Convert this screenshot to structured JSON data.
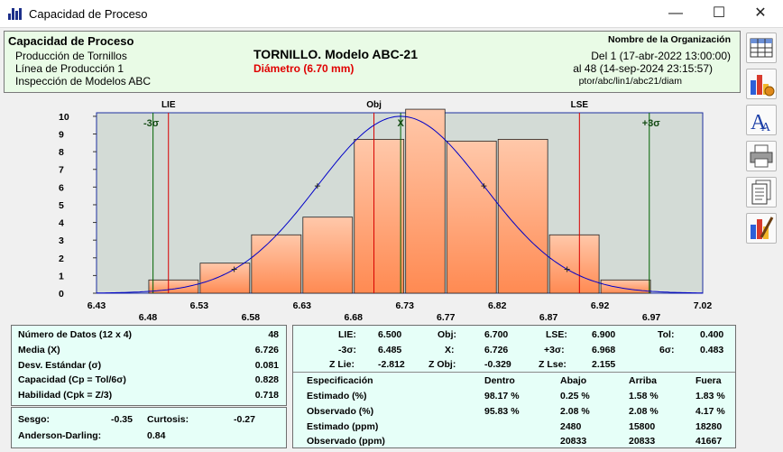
{
  "window": {
    "title": "Capacidad de Proceso"
  },
  "header": {
    "heading": "Capacidad de Proceso",
    "line1": "Producción de Tornillos",
    "line2": "Línea de Producción 1",
    "line3": "Inspección de Modelos ABC",
    "product": "TORNILLO. Modelo ABC-21",
    "characteristic": "Diámetro (6.70 mm)",
    "org": "Nombre de la Organización",
    "from": "Del 1 (17-abr-2022  13:00:00)",
    "to": "al 48 (14-sep-2024  23:15:57)",
    "path": "ptor/abc/lin1/abc21/diam"
  },
  "chart_data": {
    "type": "bar",
    "bin_edges": [
      6.43,
      6.48,
      6.53,
      6.58,
      6.63,
      6.68,
      6.73,
      6.77,
      6.82,
      6.87,
      6.92,
      6.97,
      7.02
    ],
    "tick_labels_top": [
      "6.43",
      "6.53",
      "6.63",
      "6.73",
      "6.82",
      "6.92",
      "7.02"
    ],
    "tick_labels_bottom": [
      "6.48",
      "6.58",
      "6.68",
      "6.77",
      "6.87",
      "6.97"
    ],
    "values": [
      0,
      0.75,
      1.7,
      3.3,
      4.3,
      8.7,
      10.4,
      8.6,
      8.7,
      3.3,
      0.75,
      0
    ],
    "ylim": [
      0,
      10.2
    ],
    "yticks": [
      "0",
      "1",
      "2",
      "3",
      "4",
      "5",
      "6",
      "7",
      "8",
      "9",
      "10"
    ],
    "xlim": [
      6.43,
      7.02
    ],
    "lines": [
      {
        "label": "LIE",
        "x": 6.5,
        "color": "#d80000"
      },
      {
        "label": "Obj",
        "x": 6.7,
        "color": "#d80000"
      },
      {
        "label": "LSE",
        "x": 6.9,
        "color": "#d80000"
      },
      {
        "label": "-3σ",
        "x": 6.485,
        "color": "#006400"
      },
      {
        "label": "X",
        "x": 6.726,
        "color": "#006400"
      },
      {
        "label": "+3σ",
        "x": 6.968,
        "color": "#006400"
      }
    ],
    "curve": {
      "mean": 6.726,
      "sigma": 0.081,
      "peak": 10
    },
    "colors": {
      "bar": "#ff8a52",
      "bar_light": "#ffc8aa",
      "curve": "#0000c8",
      "plot_bg": "#d3dbd6"
    }
  },
  "stats": {
    "n_label": "Número de Datos  (12 x 4)",
    "n_value": "48",
    "media_label": "Media (X)",
    "media_value": "6.726",
    "desv_label": "Desv. Estándar (σ)",
    "desv_value": "0.081",
    "cap_label": "Capacidad (Cp = Tol/6σ)",
    "cap_value": "0.828",
    "hab_label": "Habilidad (Cpk = Z/3)",
    "hab_value": "0.718",
    "sesgo_label": "Sesgo:",
    "sesgo_value": "-0.35",
    "curt_label": "Curtosis:",
    "curt_value": "-0.27",
    "ad_label": "Anderson-Darling:",
    "ad_value": "0.84"
  },
  "limits": {
    "lie_label": "LIE:",
    "lie_value": "6.500",
    "obj_label": "Obj:",
    "obj_value": "6.700",
    "lse_label": "LSE:",
    "lse_value": "6.900",
    "tol_label": "Tol:",
    "tol_value": "0.400",
    "m3s_label": "-3σ:",
    "m3s_value": "6.485",
    "x_label": "X:",
    "x_value": "6.726",
    "p3s_label": "+3σ:",
    "p3s_value": "6.968",
    "s6_label": "6σ:",
    "s6_value": "0.483",
    "zlie_label": "Z Lie:",
    "zlie_value": "-2.812",
    "zobj_label": "Z Obj:",
    "zobj_value": "-0.329",
    "zlse_label": "Z Lse:",
    "zlse_value": "2.155"
  },
  "spec_table": {
    "headers": [
      "Especificación",
      "Dentro",
      "Abajo",
      "Arriba",
      "Fuera"
    ],
    "rows": [
      [
        "Estimado (%)",
        "98.17 %",
        "0.25 %",
        "1.58 %",
        "1.83 %"
      ],
      [
        "Observado (%)",
        "95.83 %",
        "2.08 %",
        "2.08 %",
        "4.17 %"
      ],
      [
        "Estimado (ppm)",
        "",
        "2480",
        "15800",
        "18280"
      ],
      [
        "Observado (ppm)",
        "",
        "20833",
        "20833",
        "41667"
      ]
    ]
  },
  "sidebar": {
    "icons": [
      "table-icon",
      "charts-icon",
      "font-icon",
      "printer-icon",
      "document-icon",
      "chart-palette-icon"
    ]
  }
}
